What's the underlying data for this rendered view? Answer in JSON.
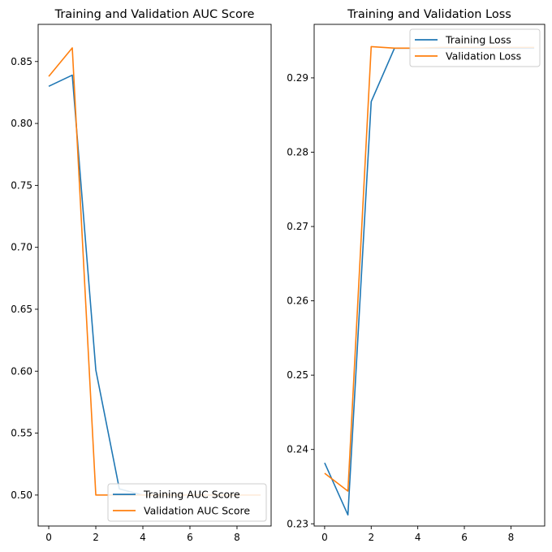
{
  "chart_data": [
    {
      "type": "line",
      "title": "Training and Validation AUC Score",
      "xlabel": "",
      "ylabel": "",
      "x": [
        0,
        1,
        2,
        3,
        4,
        5,
        6,
        7,
        8,
        9
      ],
      "xlim": [
        -0.45,
        9.45
      ],
      "ylim": [
        0.475,
        0.88
      ],
      "xticks": [
        0,
        2,
        4,
        6,
        8
      ],
      "yticks": [
        0.5,
        0.55,
        0.6,
        0.65,
        0.7,
        0.75,
        0.8,
        0.85
      ],
      "grid": false,
      "legend_position": "lower right",
      "series": [
        {
          "name": "Training AUC Score",
          "color": "#1f77b4",
          "values": [
            0.83,
            0.839,
            0.601,
            0.505,
            0.5,
            0.5,
            0.5,
            0.5,
            0.5,
            0.5
          ]
        },
        {
          "name": "Validation AUC Score",
          "color": "#ff7f0e",
          "values": [
            0.838,
            0.861,
            0.5,
            0.5,
            0.5,
            0.5,
            0.5,
            0.5,
            0.5,
            0.5
          ]
        }
      ]
    },
    {
      "type": "line",
      "title": "Training and Validation Loss",
      "xlabel": "",
      "ylabel": "",
      "x": [
        0,
        1,
        2,
        3,
        4,
        5,
        6,
        7,
        8,
        9
      ],
      "xlim": [
        -0.45,
        9.45
      ],
      "ylim": [
        0.2297,
        0.2972
      ],
      "xticks": [
        0,
        2,
        4,
        6,
        8
      ],
      "yticks": [
        0.23,
        0.24,
        0.25,
        0.26,
        0.27,
        0.28,
        0.29
      ],
      "grid": false,
      "legend_position": "upper right",
      "series": [
        {
          "name": "Training Loss",
          "color": "#1f77b4",
          "values": [
            0.2382,
            0.2312,
            0.2868,
            0.294,
            0.294,
            0.294,
            0.294,
            0.294,
            0.294,
            0.294
          ]
        },
        {
          "name": "Validation Loss",
          "color": "#ff7f0e",
          "values": [
            0.2368,
            0.2344,
            0.2942,
            0.294,
            0.294,
            0.2941,
            0.2941,
            0.2941,
            0.2941,
            0.2941
          ]
        }
      ]
    }
  ]
}
